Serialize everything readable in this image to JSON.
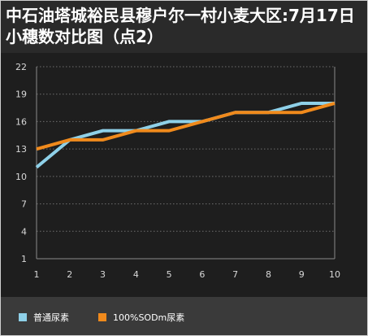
{
  "title": "中石油塔城裕民县穆户尔一村小麦大区:7月17日小穗数对比图（点2）",
  "colors": {
    "background": "#2a2a2a",
    "plot_background": "#1e1e1e",
    "legend_background": "#3a3a3a",
    "grid": "#6e6e6e",
    "tick_text": "#d8d8d8",
    "title_text": "#ffffff"
  },
  "chart_data": {
    "type": "line",
    "title": "中石油塔城裕民县穆户尔一村小麦大区:7月17日小穗数对比图（点2）",
    "x": [
      1,
      2,
      3,
      4,
      5,
      6,
      7,
      8,
      9,
      10
    ],
    "yticks": [
      1,
      4,
      7,
      10,
      13,
      16,
      19,
      22
    ],
    "ylim": [
      1,
      22
    ],
    "xlim": [
      1,
      10
    ],
    "grid": true,
    "legend_position": "bottom",
    "series": [
      {
        "name": "普通尿素",
        "color": "#8ed0e8",
        "values": [
          11,
          14,
          15,
          15,
          16,
          16,
          17,
          17,
          18,
          18
        ]
      },
      {
        "name": "100%SODm尿素",
        "color": "#f08a1c",
        "values": [
          13,
          14,
          14,
          15,
          15,
          16,
          17,
          17,
          17,
          18
        ]
      }
    ]
  }
}
